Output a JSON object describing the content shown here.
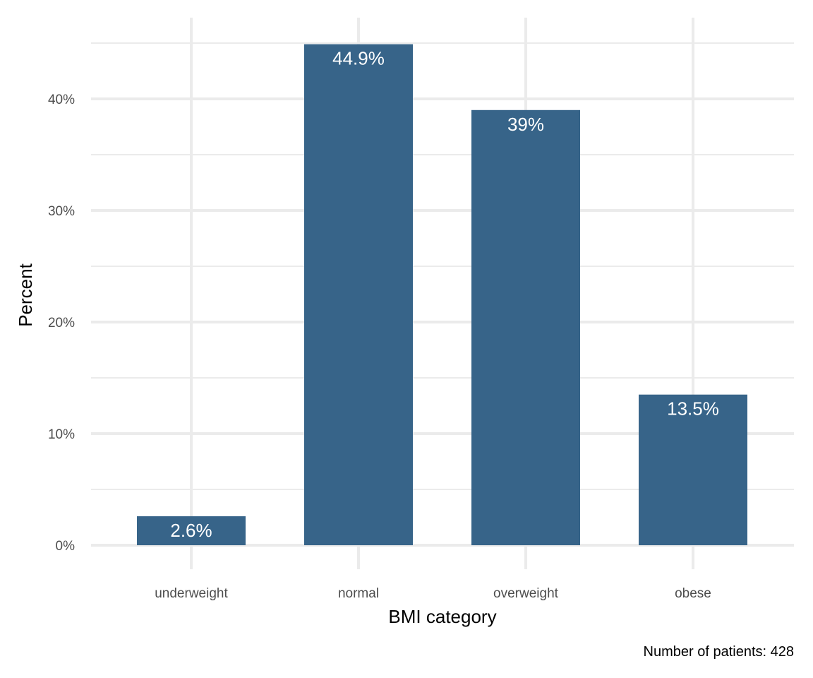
{
  "chart_data": {
    "type": "bar",
    "categories": [
      "underweight",
      "normal",
      "overweight",
      "obese"
    ],
    "values": [
      2.6,
      44.9,
      39,
      13.5
    ],
    "data_labels": [
      "2.6%",
      "44.9%",
      "39%",
      "13.5%"
    ],
    "xlabel": "BMI category",
    "ylabel": "Percent",
    "ylim": [
      0,
      45
    ],
    "y_ticks": [
      0,
      10,
      20,
      30,
      40
    ],
    "y_tick_labels": [
      "0%",
      "10%",
      "20%",
      "30%",
      "40%"
    ],
    "grid": true,
    "bar_color": "#376489",
    "grid_color": "#ebebeb"
  },
  "caption": "Number of patients: 428"
}
